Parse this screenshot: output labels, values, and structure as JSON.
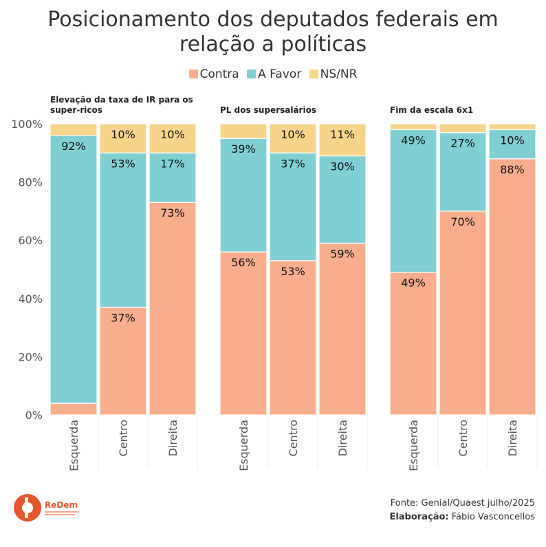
{
  "title_line1": "Posicionamento dos deputados federais em",
  "title_line2": "relação a políticas",
  "legend": [
    {
      "label": "Contra",
      "color": "#f8ad8d"
    },
    {
      "label": "A Favor",
      "color": "#80cfd3"
    },
    {
      "label": "NS/NR",
      "color": "#f6d58b"
    }
  ],
  "source_line": "Fonte: Genial/Quaest julho/2025",
  "credit_label": "Elaboração:",
  "credit_name": "Fábio Vasconcellos",
  "logo_text": "ReDem",
  "chart_data": {
    "type": "bar",
    "stacked": true,
    "ylim": [
      0,
      100
    ],
    "yticks": [
      "0%",
      "20%",
      "40%",
      "60%",
      "80%",
      "100%"
    ],
    "categories": [
      "Esquerda",
      "Centro",
      "Direita"
    ],
    "facets": [
      {
        "title_lines": [
          "Elevação da taxa de IR para os",
          "super-ricos"
        ],
        "series": [
          {
            "name": "Contra",
            "values": [
              4,
              37,
              73
            ],
            "labels": [
              "",
              "37%",
              "73%"
            ]
          },
          {
            "name": "A Favor",
            "values": [
              92,
              53,
              17
            ],
            "labels": [
              "92%",
              "53%",
              "17%"
            ]
          },
          {
            "name": "NS/NR",
            "values": [
              4,
              10,
              10
            ],
            "labels": [
              "",
              "10%",
              "10%"
            ]
          }
        ]
      },
      {
        "title_lines": [
          "PL dos supersalários"
        ],
        "series": [
          {
            "name": "Contra",
            "values": [
              56,
              53,
              59
            ],
            "labels": [
              "56%",
              "53%",
              "59%"
            ]
          },
          {
            "name": "A Favor",
            "values": [
              39,
              37,
              30
            ],
            "labels": [
              "39%",
              "37%",
              "30%"
            ]
          },
          {
            "name": "NS/NR",
            "values": [
              5,
              10,
              11
            ],
            "labels": [
              "",
              "10%",
              "11%"
            ]
          }
        ]
      },
      {
        "title_lines": [
          "Fim da escala 6x1"
        ],
        "series": [
          {
            "name": "Contra",
            "values": [
              49,
              70,
              88
            ],
            "labels": [
              "49%",
              "70%",
              "88%"
            ]
          },
          {
            "name": "A Favor",
            "values": [
              49,
              27,
              10
            ],
            "labels": [
              "49%",
              "27%",
              "10%"
            ]
          },
          {
            "name": "NS/NR",
            "values": [
              2,
              3,
              2
            ],
            "labels": [
              "",
              "",
              ""
            ]
          }
        ]
      }
    ]
  }
}
